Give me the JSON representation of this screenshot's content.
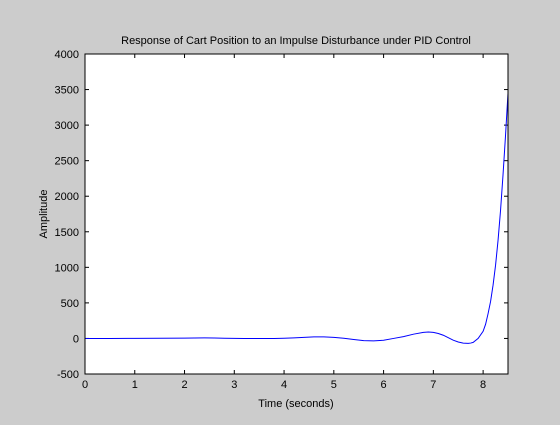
{
  "chart_data": {
    "type": "line",
    "title": "Response of Cart Position to an Impulse Disturbance under PID Control",
    "xlabel": "Time (seconds)",
    "ylabel": "Amplitude",
    "xlim": [
      0,
      8.5
    ],
    "ylim": [
      -500,
      4000
    ],
    "grid": false,
    "xticks": [
      0,
      1,
      2,
      3,
      4,
      5,
      6,
      7,
      8
    ],
    "yticks": [
      -500,
      0,
      500,
      1000,
      1500,
      2000,
      2500,
      3000,
      3500,
      4000
    ],
    "series": [
      {
        "color": "#0000ff",
        "x": [
          0,
          0.5,
          1.0,
          1.5,
          2.0,
          2.2,
          2.4,
          2.6,
          2.8,
          3.0,
          3.2,
          3.4,
          3.6,
          3.8,
          4.0,
          4.2,
          4.4,
          4.6,
          4.8,
          5.0,
          5.2,
          5.4,
          5.6,
          5.8,
          6.0,
          6.2,
          6.4,
          6.6,
          6.8,
          6.9,
          7.0,
          7.1,
          7.2,
          7.3,
          7.4,
          7.5,
          7.6,
          7.7,
          7.75,
          7.8,
          7.9,
          8.0,
          8.05,
          8.1,
          8.15,
          8.2,
          8.25,
          8.3,
          8.35,
          8.4,
          8.45,
          8.5
        ],
        "y": [
          0,
          0,
          1,
          2,
          4,
          7,
          8,
          6,
          3,
          1,
          0,
          0,
          -1,
          0,
          3,
          8,
          15,
          22,
          22,
          15,
          2,
          -15,
          -30,
          -35,
          -25,
          0,
          25,
          60,
          85,
          90,
          85,
          70,
          45,
          10,
          -25,
          -50,
          -65,
          -70,
          -65,
          -55,
          0,
          100,
          200,
          350,
          520,
          750,
          1030,
          1380,
          1800,
          2300,
          2850,
          3450
        ]
      }
    ]
  }
}
